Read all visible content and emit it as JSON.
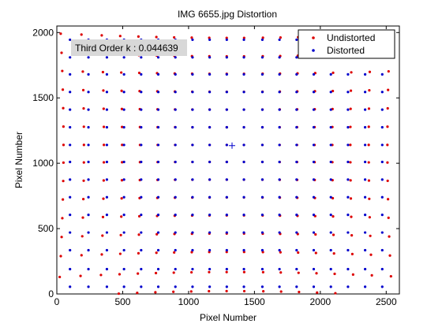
{
  "chart_data": {
    "type": "scatter",
    "title": "IMG 6655.jpg Distortion",
    "xlabel": "Pixel Number",
    "ylabel": "Pixel Number",
    "xlim": [
      0,
      2600
    ],
    "ylim": [
      0,
      2050
    ],
    "xticks": [
      0,
      500,
      1000,
      1500,
      2000,
      2500
    ],
    "yticks": [
      0,
      500,
      1000,
      1500,
      2000
    ],
    "grid": false,
    "legend_position": "top-right",
    "annotation": "Third Order k : 0.044639",
    "center_marker": {
      "x": 1330,
      "y": 1135
    },
    "series": [
      {
        "name": "Undistorted",
        "color": "#dd0000",
        "marker": "dot",
        "grid_x": [
          100,
          240,
          380,
          510,
          640,
          770,
          900,
          1030,
          1160,
          1290,
          1420,
          1560,
          1690,
          1820,
          1950,
          2080,
          2210,
          2340,
          2470
        ],
        "grid_y": [
          55,
          190,
          335,
          470,
          605,
          740,
          875,
          1010,
          1140,
          1275,
          1410,
          1545,
          1680,
          1810,
          1945
        ]
      },
      {
        "name": "Distorted",
        "color": "#0000cc",
        "marker": "dot",
        "distortion_center": [
          1330,
          1135
        ],
        "radial_k": 0.044639
      }
    ]
  }
}
